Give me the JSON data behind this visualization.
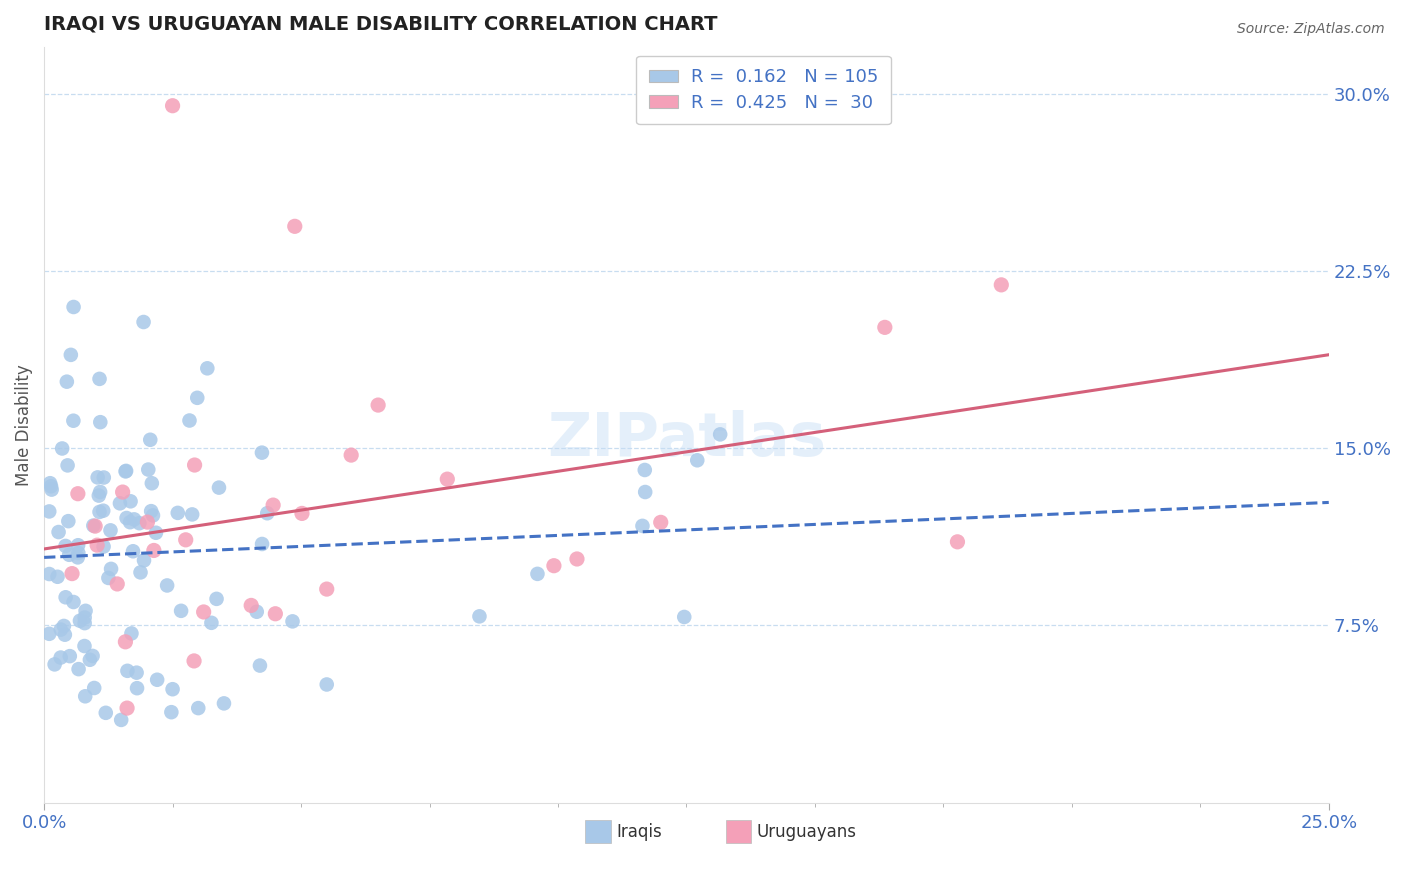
{
  "title": "IRAQI VS URUGUAYAN MALE DISABILITY CORRELATION CHART",
  "source": "Source: ZipAtlas.com",
  "ylabel": "Male Disability",
  "xlim": [
    0.0,
    0.25
  ],
  "ylim": [
    0.0,
    0.32
  ],
  "iraqis_R": "0.162",
  "iraqis_N": "105",
  "uruguayans_R": "0.425",
  "uruguayans_N": "30",
  "iraqis_color": "#a8c8e8",
  "uruguayans_color": "#f4a0b8",
  "iraqis_line_color": "#4472c4",
  "uruguayans_line_color": "#d4607a",
  "watermark": "ZIPatlas",
  "grid_color": "#c8ddf0",
  "title_color": "#222222",
  "tick_color": "#4472c4",
  "ylabel_color": "#555555",
  "source_color": "#666666",
  "ytick_positions": [
    0.075,
    0.15,
    0.225,
    0.3
  ],
  "ytick_labels": [
    "7.5%",
    "15.0%",
    "22.5%",
    "30.0%"
  ],
  "xtick_positions": [
    0.0,
    0.25
  ],
  "xtick_labels": [
    "0.0%",
    "25.0%"
  ],
  "xtick_minor": [
    0.025,
    0.05,
    0.075,
    0.1,
    0.125,
    0.15,
    0.175,
    0.2,
    0.225
  ]
}
